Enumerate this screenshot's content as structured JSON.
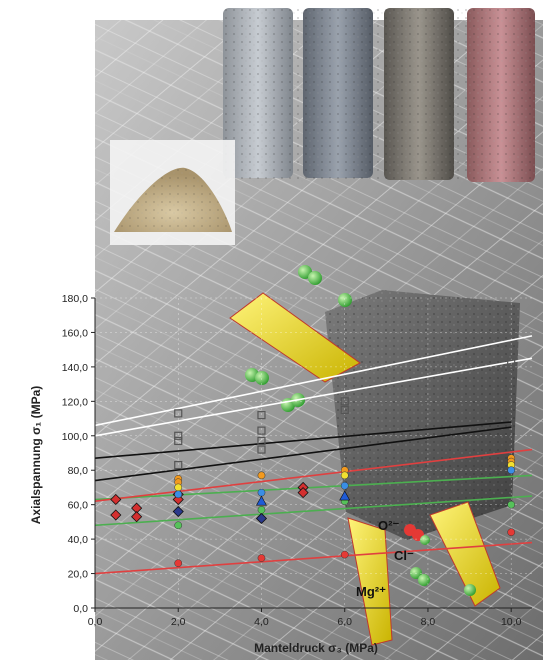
{
  "chart_data": {
    "type": "scatter",
    "xlabel": "Manteldruck σ₃ (MPa)",
    "ylabel": "Axialspannung σ₁ (MPa)",
    "xlim": [
      0,
      10.5
    ],
    "ylim": [
      0,
      180
    ],
    "xticks": [
      "0,0",
      "2,0",
      "4,0",
      "6,0",
      "8,0",
      "10,0"
    ],
    "yticks": [
      "0,0",
      "20,0",
      "40,0",
      "60,0",
      "80,0",
      "100,0",
      "120,0",
      "140,0",
      "160,0",
      "180,0"
    ],
    "grid": true,
    "legend": "none",
    "annotations": [
      "Mg²⁺",
      "Cl⁻",
      "O²⁻"
    ],
    "colors": {
      "green_band": "#4caf50",
      "white_line": "#ffffff",
      "black_line": "#111111",
      "red_line": "#e04040"
    },
    "series": [
      {
        "marker": "square-open-gray",
        "color": "#555555",
        "points": [
          [
            2,
            113
          ],
          [
            2,
            100
          ],
          [
            2,
            97
          ],
          [
            2,
            83
          ],
          [
            4,
            112
          ],
          [
            4,
            103
          ],
          [
            4,
            97
          ],
          [
            4,
            92
          ],
          [
            6,
            120
          ],
          [
            6,
            115
          ],
          [
            10,
            143
          ],
          [
            10,
            137
          ]
        ]
      },
      {
        "marker": "diamond-red",
        "color": "#d32f2f",
        "points": [
          [
            0.5,
            63
          ],
          [
            0.5,
            54
          ],
          [
            1,
            58
          ],
          [
            1,
            53
          ],
          [
            2,
            66
          ],
          [
            2,
            63
          ],
          [
            5,
            70
          ],
          [
            5,
            67
          ]
        ]
      },
      {
        "marker": "diamond-navy",
        "color": "#2b3a8c",
        "points": [
          [
            2,
            56
          ],
          [
            4,
            52
          ]
        ]
      },
      {
        "marker": "circle-orange",
        "color": "#f29a1f",
        "points": [
          [
            2,
            75
          ],
          [
            2,
            73
          ],
          [
            4,
            77
          ],
          [
            6,
            80
          ],
          [
            10,
            87
          ],
          [
            10,
            85
          ]
        ]
      },
      {
        "marker": "circle-yellow",
        "color": "#f2e030",
        "points": [
          [
            2,
            70
          ],
          [
            6,
            77
          ],
          [
            10,
            83
          ]
        ]
      },
      {
        "marker": "circle-blue",
        "color": "#3a8ee6",
        "points": [
          [
            2,
            66
          ],
          [
            4,
            67
          ],
          [
            6,
            71
          ],
          [
            10,
            80
          ]
        ]
      },
      {
        "marker": "circle-green",
        "color": "#56c25a",
        "points": [
          [
            2,
            48
          ],
          [
            4,
            57
          ],
          [
            6,
            62
          ],
          [
            10,
            60
          ]
        ]
      },
      {
        "marker": "triangle-blue",
        "color": "#1f5bd6",
        "points": [
          [
            4,
            62
          ],
          [
            6,
            65
          ]
        ]
      },
      {
        "marker": "circle-red",
        "color": "#e53935",
        "points": [
          [
            2,
            26
          ],
          [
            4,
            29
          ],
          [
            6,
            31
          ],
          [
            10,
            44
          ]
        ]
      }
    ],
    "lines": [
      {
        "color": "#ffffff",
        "from": [
          0,
          106
        ],
        "to": [
          10.5,
          158
        ]
      },
      {
        "color": "#ffffff",
        "from": [
          0,
          100
        ],
        "to": [
          10.5,
          145
        ]
      },
      {
        "color": "#111111",
        "from": [
          0,
          74
        ],
        "to": [
          10,
          105
        ]
      },
      {
        "color": "#111111",
        "from": [
          0,
          87
        ],
        "to": [
          10,
          108
        ]
      },
      {
        "color": "#4caf50",
        "from": [
          0,
          63
        ],
        "to": [
          10.5,
          77
        ]
      },
      {
        "color": "#4caf50",
        "from": [
          0,
          48
        ],
        "to": [
          10.5,
          65
        ]
      },
      {
        "color": "#e04040",
        "from": [
          0,
          20
        ],
        "to": [
          10.5,
          38
        ]
      },
      {
        "color": "#e04040",
        "from": [
          0,
          62
        ],
        "to": [
          10.5,
          92
        ]
      }
    ]
  }
}
